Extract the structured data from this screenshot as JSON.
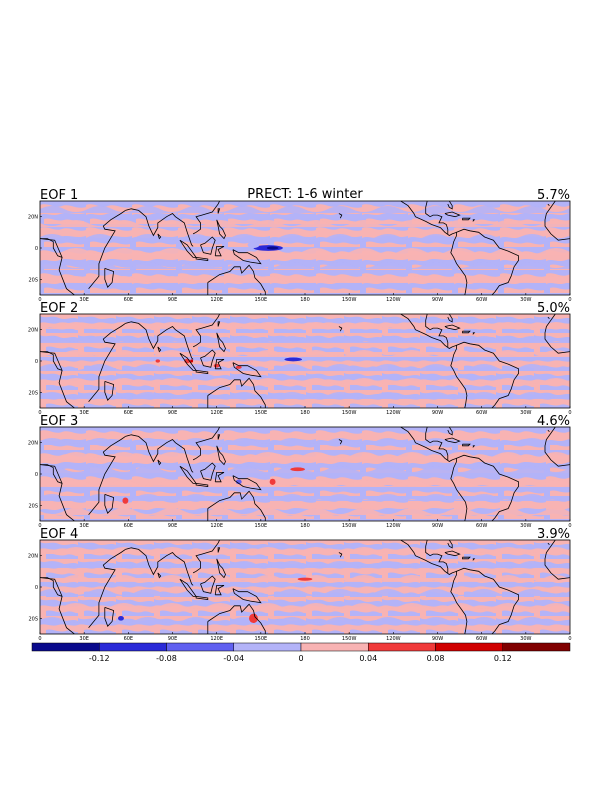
{
  "figure": {
    "title": "PRECT: 1-6 winter"
  },
  "panels": [
    {
      "label": "EOF 1",
      "percent": "5.7%"
    },
    {
      "label": "EOF 2",
      "percent": "5.0%"
    },
    {
      "label": "EOF 3",
      "percent": "4.6%"
    },
    {
      "label": "EOF 4",
      "percent": "3.9%"
    }
  ],
  "axes": {
    "x_ticks": [
      "0",
      "30E",
      "60E",
      "90E",
      "120E",
      "150E",
      "180",
      "150W",
      "120W",
      "90W",
      "60W",
      "30W",
      "0"
    ],
    "y_ticks": [
      "20N",
      "0",
      "20S"
    ],
    "lat_range": [
      -30,
      30
    ],
    "lon_range": [
      0,
      360
    ]
  },
  "colorbar": {
    "labels": [
      "-0.12",
      "-0.08",
      "-0.04",
      "0",
      "0.04",
      "0.08",
      "0.12"
    ],
    "colors": [
      "#0a0a8c",
      "#2a2ad8",
      "#6060f0",
      "#b3b3f8",
      "#f8b3b3",
      "#f03a3a",
      "#d00000",
      "#800000"
    ]
  },
  "colors": {
    "positive_weak": "#f8b3b3",
    "negative_weak": "#b3b3f8",
    "negative_strong": "#2a2ad8",
    "positive_strong": "#e8281e",
    "coast": "#000000"
  }
}
